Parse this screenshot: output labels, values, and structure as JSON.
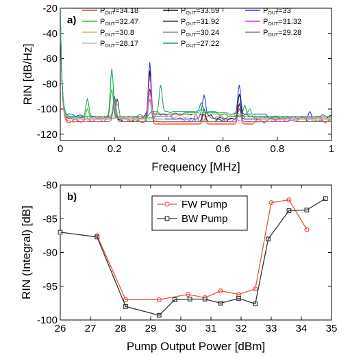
{
  "chart_data": [
    {
      "type": "line",
      "panel_label": "a)",
      "xlabel": "Frequency [MHz]",
      "ylabel": "RIN [dB/Hz]",
      "xlim": [
        0,
        1
      ],
      "ylim": [
        -125,
        -20
      ],
      "xticks": [
        0,
        0.2,
        0.4,
        0.6,
        0.8,
        1
      ],
      "xtick_labels": [
        "0",
        "0.2",
        "0.4",
        "0.6",
        "0.8",
        "1"
      ],
      "yticks": [
        -20,
        -40,
        -60,
        -80,
        -100,
        -120
      ],
      "ytick_labels": [
        "-20",
        "-40",
        "-60",
        "-80",
        "-100",
        "-120"
      ],
      "grid": false,
      "legend_position": "top",
      "legend_prefix": "P",
      "legend_subscript": "OUT",
      "series": [
        {
          "name": "=34.18",
          "color": "#e8312a",
          "base": -112,
          "peaks": [
            [
              0.33,
              -72
            ],
            [
              0.66,
              -96
            ],
            [
              0.53,
              -104
            ],
            [
              0.2,
              -98
            ]
          ]
        },
        {
          "name": "=33.59",
          "color": "#111111",
          "base": -110,
          "peaks": [
            [
              0.33,
              -70
            ],
            [
              0.66,
              -92
            ],
            [
              0.53,
              -100
            ],
            [
              0.2,
              -94
            ]
          ]
        },
        {
          "name": "=33",
          "color": "#2b3de0",
          "base": -108,
          "peaks": [
            [
              0.33,
              -63
            ],
            [
              0.66,
              -85
            ],
            [
              0.53,
              -93
            ],
            [
              0.92,
              -102
            ],
            [
              0.2,
              -90
            ]
          ]
        },
        {
          "name": "=32.47",
          "color": "#2ec22e",
          "base": -107,
          "peaks": [
            [
              0.1,
              -100
            ],
            [
              0.19,
              -84
            ],
            [
              0.36,
              -102
            ],
            [
              0.52,
              -104
            ],
            [
              0.7,
              -102
            ]
          ]
        },
        {
          "name": "=31.92",
          "color": "#333333",
          "base": -108,
          "peaks": [
            [
              0.21,
              -92
            ],
            [
              0.33,
              -88
            ],
            [
              0.66,
              -96
            ]
          ]
        },
        {
          "name": "=31.32",
          "color": "#d63ad6",
          "base": -110,
          "peaks": [
            [
              0.33,
              -78
            ],
            [
              0.66,
              -100
            ]
          ]
        },
        {
          "name": "=30.8",
          "color": "#f2a05a",
          "base": -111,
          "peaks": [
            [
              0.2,
              -96
            ],
            [
              0.33,
              -90
            ]
          ]
        },
        {
          "name": "=30.24",
          "color": "#8a7fc2",
          "base": -110,
          "peaks": [
            [
              0.2,
              -96
            ],
            [
              0.33,
              -92
            ]
          ]
        },
        {
          "name": "=29.28",
          "color": "#857e5a",
          "base": -110,
          "peaks": [
            [
              0.2,
              -94
            ],
            [
              0.5,
              -104
            ]
          ]
        },
        {
          "name": "=28.17",
          "color": "#bdbdbd",
          "base": -108,
          "peaks": [
            [
              0.21,
              -96
            ]
          ]
        },
        {
          "name": "=27.22",
          "color": "#23a05f",
          "base": -106,
          "peaks": [
            [
              0.1,
              -92
            ],
            [
              0.19,
              -68
            ],
            [
              0.37,
              -85
            ],
            [
              0.52,
              -99
            ],
            [
              0.68,
              -97
            ]
          ]
        }
      ]
    },
    {
      "type": "line",
      "panel_label": "b)",
      "xlabel": "Pump Output Power [dBm]",
      "ylabel": "RIN (Integral) [dB]",
      "xlim": [
        26,
        35
      ],
      "ylim": [
        -100,
        -80
      ],
      "xticks": [
        26,
        27,
        28,
        29,
        30,
        31,
        32,
        33,
        34,
        35
      ],
      "xtick_labels": [
        "26",
        "27",
        "28",
        "29",
        "30",
        "31",
        "32",
        "33",
        "34",
        "35"
      ],
      "yticks": [
        -80,
        -85,
        -90,
        -95,
        -100
      ],
      "ytick_labels": [
        "-80",
        "-85",
        "-90",
        "-95",
        "-100"
      ],
      "grid": false,
      "legend_position": "top-center",
      "series": [
        {
          "name": "FW Pump",
          "color": "#e8533a",
          "marker": "circle",
          "x": [
            27.22,
            28.17,
            29.28,
            30.24,
            30.8,
            31.32,
            31.92,
            32.47,
            33.0,
            33.59,
            34.18
          ],
          "y": [
            -87.5,
            -97.0,
            -97.0,
            -96.2,
            -96.7,
            -95.7,
            -96.2,
            -95.4,
            -82.6,
            -82.2,
            -86.6
          ]
        },
        {
          "name": "BW Pump",
          "color": "#333333",
          "marker": "square",
          "x": [
            26.0,
            27.22,
            28.17,
            29.28,
            29.8,
            30.3,
            30.8,
            31.32,
            31.92,
            32.47,
            32.9,
            33.59,
            34.18,
            34.8
          ],
          "y": [
            -87.0,
            -87.7,
            -98.0,
            -99.3,
            -97.0,
            -96.9,
            -96.9,
            -97.5,
            -96.8,
            -97.6,
            -88.0,
            -83.8,
            -83.7,
            -82.0
          ]
        }
      ]
    }
  ]
}
